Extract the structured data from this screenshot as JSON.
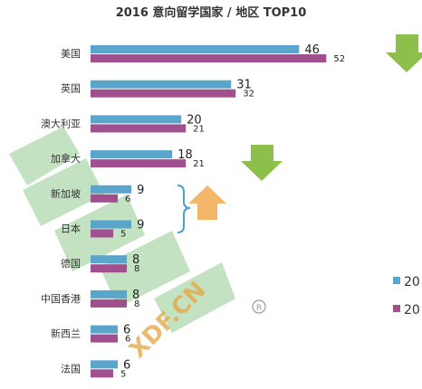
{
  "chart_data": {
    "type": "bar",
    "title": "2016 意向留学国家 / 地区 TOP10",
    "categories": [
      "美国",
      "英国",
      "澳大利亚",
      "加拿大",
      "新加坡",
      "日本",
      "德国",
      "中国香港",
      "新西兰",
      "法国"
    ],
    "series": [
      {
        "name": "20",
        "color": "#5aa5cc",
        "values": [
          46,
          31,
          20,
          18,
          9,
          9,
          8,
          8,
          6,
          6
        ]
      },
      {
        "name": "20",
        "color": "#a0508f",
        "values": [
          52,
          32,
          21,
          21,
          6,
          5,
          8,
          8,
          6,
          5
        ]
      }
    ],
    "xlim": [
      0,
      60
    ],
    "grid": false,
    "legend": "right"
  },
  "watermark_text": "XDF.CN",
  "colors": {
    "arrow_green": "#8cc04b",
    "arrow_orange": "#f4b76a",
    "bracket": "#4b9fd1",
    "watermark": "#e6a94a"
  }
}
